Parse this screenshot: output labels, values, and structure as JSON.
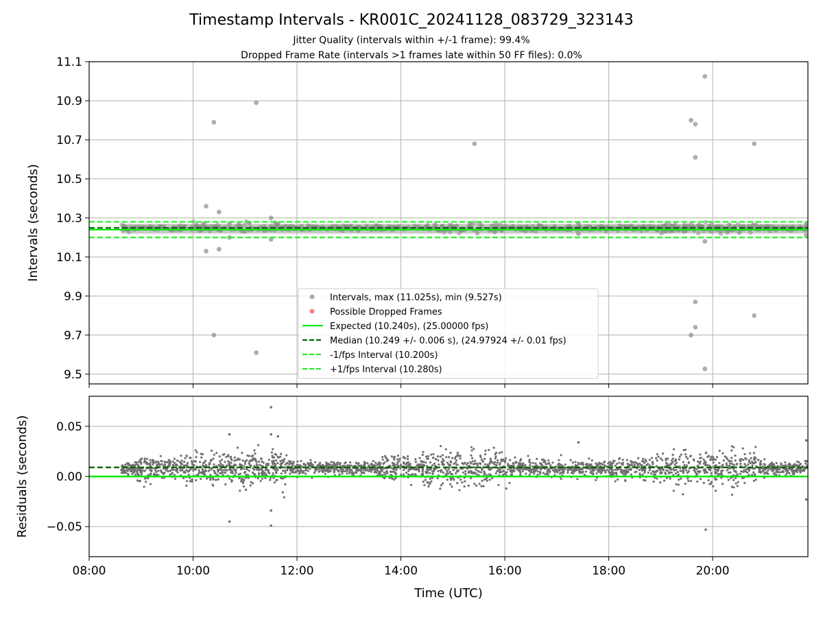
{
  "title": "Timestamp Intervals - KR001C_20241128_083729_323143",
  "subtitle_1": "Jitter Quality (intervals within +/-1 frame): 99.4%",
  "subtitle_2": "Dropped Frame Rate (intervals >1 frames late within 50 FF files): 0.0%",
  "chart_data": [
    {
      "type": "scatter",
      "panel": "intervals",
      "ylabel": "Intervals (seconds)",
      "ylim": [
        9.45,
        11.1
      ],
      "xlim": [
        "08:00",
        "21:50"
      ],
      "yticks": [
        "9.5",
        "9.7",
        "9.9",
        "10.1",
        "10.3",
        "10.5",
        "10.7",
        "10.9",
        "11.1"
      ],
      "grid": true,
      "legend_position": "lower center",
      "band": {
        "x_start": "08:37",
        "x_end": "21:50",
        "y_min": 10.22,
        "y_max": 10.27
      },
      "series": [
        {
          "name": "Intervals, max (11.025s), min (9.527s)",
          "color": "#808080",
          "points": [
            [
              "10:15",
              10.36
            ],
            [
              "10:15",
              10.13
            ],
            [
              "10:24",
              10.79
            ],
            [
              "10:24",
              9.7
            ],
            [
              "10:30",
              10.33
            ],
            [
              "10:30",
              10.14
            ],
            [
              "10:42",
              10.27
            ],
            [
              "10:42",
              10.2
            ],
            [
              "11:13",
              10.89
            ],
            [
              "11:13",
              9.61
            ],
            [
              "11:30",
              10.3
            ],
            [
              "11:30",
              10.19
            ],
            [
              "11:38",
              10.27
            ],
            [
              "15:25",
              10.68
            ],
            [
              "17:25",
              10.27
            ],
            [
              "17:25",
              10.22
            ],
            [
              "19:35",
              10.8
            ],
            [
              "19:35",
              9.7
            ],
            [
              "19:40",
              10.78
            ],
            [
              "19:40",
              10.61
            ],
            [
              "19:40",
              9.87
            ],
            [
              "19:40",
              9.74
            ],
            [
              "19:51",
              11.025
            ],
            [
              "19:51",
              9.527
            ],
            [
              "19:51",
              10.18
            ],
            [
              "20:48",
              10.68
            ],
            [
              "20:48",
              9.8
            ],
            [
              "21:48",
              10.27
            ],
            [
              "21:48",
              10.21
            ]
          ]
        },
        {
          "name": "Possible Dropped Frames",
          "color": "#ff4d4d",
          "points": []
        },
        {
          "name": "Expected (10.240s), (25.00000 fps)",
          "color": "#00ee00",
          "style": "solid",
          "y": 10.24
        },
        {
          "name": "Median (10.249 +/- 0.006 s), (24.97924 +/- 0.01 fps)",
          "color": "#006400",
          "style": "dashed",
          "y": 10.249
        },
        {
          "name": "-1/fps Interval (10.200s)",
          "color": "#22ee22",
          "style": "dashed",
          "y": 10.2
        },
        {
          "name": "+1/fps Interval (10.280s)",
          "color": "#22ee22",
          "style": "dashed",
          "y": 10.28
        }
      ]
    },
    {
      "type": "scatter",
      "panel": "residuals",
      "xlabel": "Time (UTC)",
      "ylabel": "Residuals (seconds)",
      "ylim": [
        -0.08,
        0.08
      ],
      "yticks": [
        "−0.05",
        "0.00",
        "0.05"
      ],
      "xticks": [
        "08:00",
        "10:00",
        "12:00",
        "14:00",
        "16:00",
        "18:00",
        "20:00"
      ],
      "grid": true,
      "data_x_range": [
        "08:37",
        "21:50"
      ],
      "series": [
        {
          "name": "Residuals",
          "color": "#707070",
          "note": "dense per-interval residuals, spread about ±0.01 s with wider scatter 10:00–11:45, 14:30–16:00, 19:00–20:45"
        },
        {
          "name": "Expected",
          "color": "#00ee00",
          "style": "solid",
          "y": 0.0
        },
        {
          "name": "Median",
          "color": "#006400",
          "style": "dashed",
          "y": 0.009
        }
      ],
      "outliers": [
        [
          "10:42",
          0.042
        ],
        [
          "10:42",
          -0.045
        ],
        [
          "11:30",
          0.069
        ],
        [
          "11:30",
          0.042
        ],
        [
          "11:30",
          -0.034
        ],
        [
          "11:30",
          -0.049
        ],
        [
          "11:38",
          0.04
        ],
        [
          "17:25",
          0.034
        ],
        [
          "19:52",
          -0.053
        ],
        [
          "21:48",
          0.036
        ],
        [
          "21:48",
          -0.023
        ]
      ]
    }
  ]
}
